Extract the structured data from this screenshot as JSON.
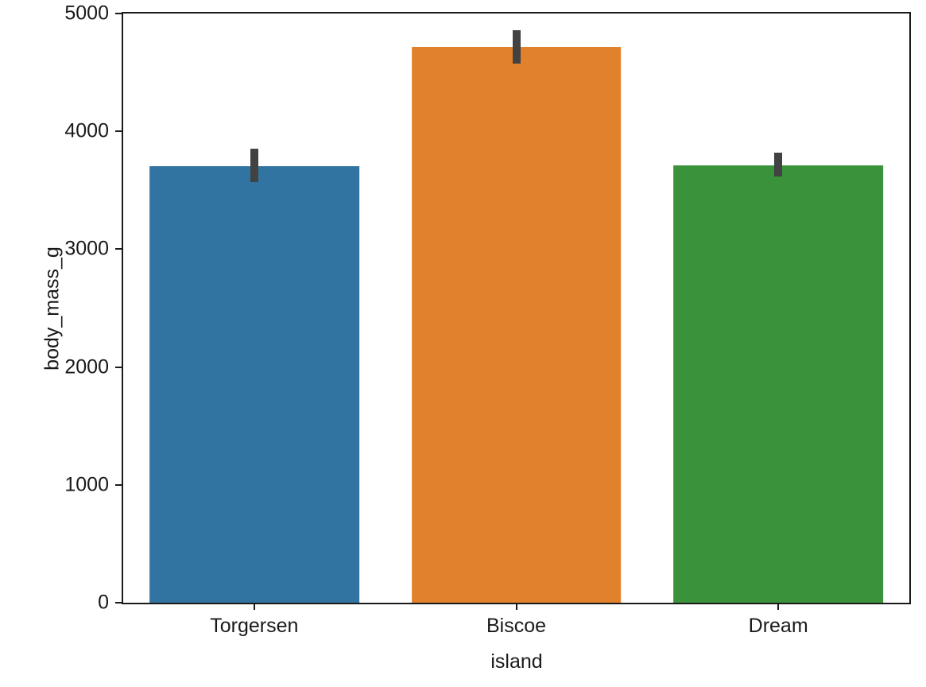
{
  "chart_data": {
    "type": "bar",
    "title": "",
    "xlabel": "island",
    "ylabel": "body_mass_g",
    "categories": [
      "Torgersen",
      "Biscoe",
      "Dream"
    ],
    "values": [
      3706,
      4716,
      3713
    ],
    "error_bars": [
      {
        "low": 3570,
        "high": 3855
      },
      {
        "low": 4575,
        "high": 4860
      },
      {
        "low": 3620,
        "high": 3820
      }
    ],
    "bar_colors": [
      "#3274a1",
      "#e1812c",
      "#3a923a"
    ],
    "error_bar_color": "#424242",
    "axis_color": "#1a1a1a",
    "ylim": [
      0,
      5000
    ],
    "yticks": [
      0,
      1000,
      2000,
      3000,
      4000,
      5000
    ],
    "bar_width_fraction": 0.8,
    "grid": false,
    "legend": null
  }
}
